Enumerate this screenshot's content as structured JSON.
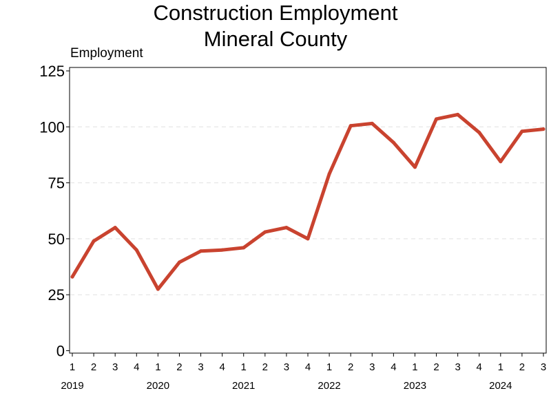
{
  "chart_data": {
    "type": "line",
    "title_line1": "Construction Employment",
    "title_line2": "Mineral County",
    "ylabel": "Employment",
    "ylim": [
      0,
      125
    ],
    "yticks": [
      "0",
      "25",
      "50",
      "75",
      "100",
      "125"
    ],
    "grid": "horizontal dashed",
    "line_color": "#c9432f",
    "quarters": [
      "1",
      "2",
      "3",
      "4",
      "1",
      "2",
      "3",
      "4",
      "1",
      "2",
      "3",
      "4",
      "1",
      "2",
      "3",
      "4",
      "1",
      "2",
      "3",
      "4",
      "1",
      "2",
      "3"
    ],
    "years": [
      "2019",
      "2020",
      "2021",
      "2022",
      "2023",
      "2024"
    ],
    "series": [
      {
        "values": [
          33,
          49,
          55,
          45,
          27.5,
          39.5,
          44.5,
          45,
          46,
          53,
          55,
          50,
          79,
          100.5,
          101.5,
          93,
          82,
          103.5,
          105.5,
          97.5,
          84.5,
          98,
          99
        ]
      }
    ]
  }
}
